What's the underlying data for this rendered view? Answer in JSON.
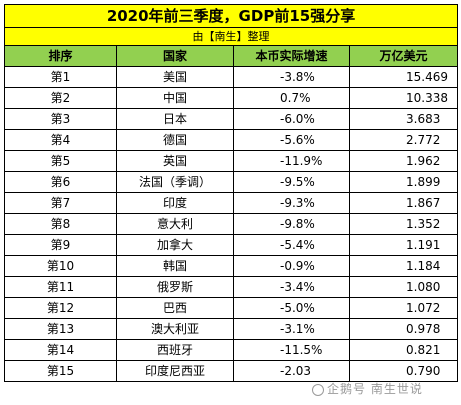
{
  "title": "2020年前三季度，GDP前15强分享",
  "credit": "由【南生】整理",
  "columns": [
    "排序",
    "国家",
    "本币实际增速",
    "万亿美元"
  ],
  "rows": [
    {
      "rank": "第1",
      "country": "美国",
      "growth": "-3.8%",
      "gdp": "15.469"
    },
    {
      "rank": "第2",
      "country": "中国",
      "growth": "0.7%",
      "gdp": "10.338"
    },
    {
      "rank": "第3",
      "country": "日本",
      "growth": "-6.0%",
      "gdp": "3.683"
    },
    {
      "rank": "第4",
      "country": "德国",
      "growth": "-5.6%",
      "gdp": "2.772"
    },
    {
      "rank": "第5",
      "country": "英国",
      "growth": "-11.9%",
      "gdp": "1.962"
    },
    {
      "rank": "第6",
      "country": "法国（季调）",
      "growth": "-9.5%",
      "gdp": "1.899"
    },
    {
      "rank": "第7",
      "country": "印度",
      "growth": "-9.3%",
      "gdp": "1.867"
    },
    {
      "rank": "第8",
      "country": "意大利",
      "growth": "-9.8%",
      "gdp": "1.352"
    },
    {
      "rank": "第9",
      "country": "加拿大",
      "growth": "-5.4%",
      "gdp": "1.191"
    },
    {
      "rank": "第10",
      "country": "韩国",
      "growth": "-0.9%",
      "gdp": "1.184"
    },
    {
      "rank": "第11",
      "country": "俄罗斯",
      "growth": "-3.4%",
      "gdp": "1.080"
    },
    {
      "rank": "第12",
      "country": "巴西",
      "growth": "-5.0%",
      "gdp": "1.072"
    },
    {
      "rank": "第13",
      "country": "澳大利亚",
      "growth": "-3.1%",
      "gdp": "0.978"
    },
    {
      "rank": "第14",
      "country": "西班牙",
      "growth": "-11.5%",
      "gdp": "0.821"
    },
    {
      "rank": "第15",
      "country": "印度尼西亚",
      "growth": "-2.03",
      "gdp": "0.790"
    }
  ],
  "watermark": "企鹅号 南生世说"
}
